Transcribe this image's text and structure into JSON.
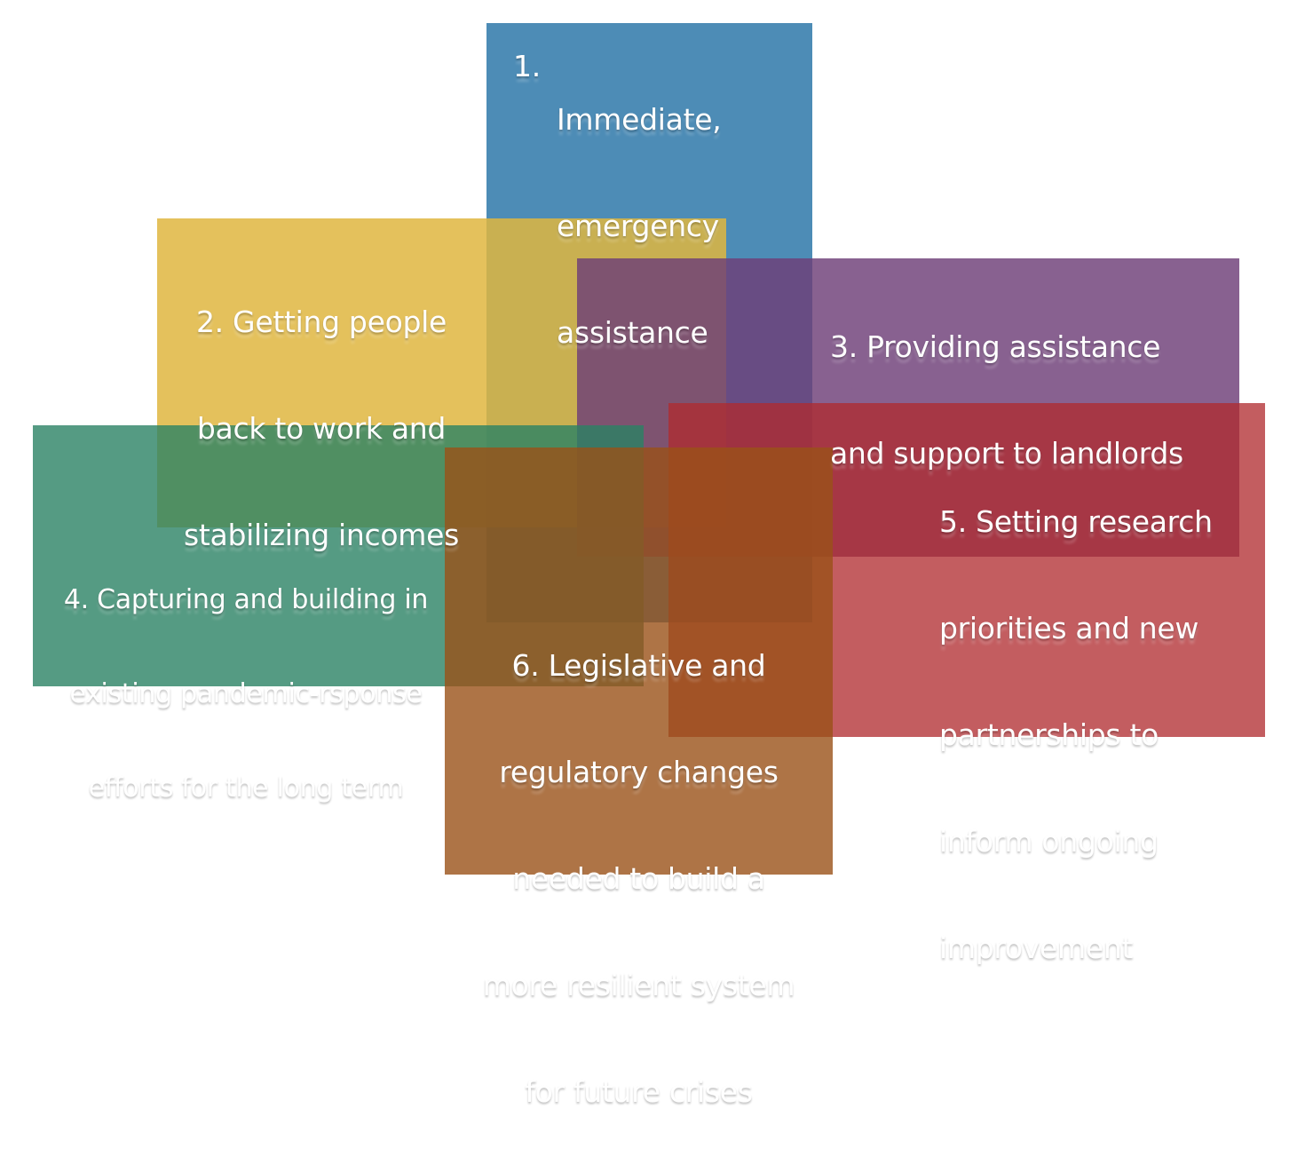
{
  "diagram": {
    "boxes": [
      {
        "id": "b1",
        "number": "1.",
        "lines": [
          "Immediate,",
          "emergency",
          "assistance"
        ],
        "color": "#2e78a9"
      },
      {
        "id": "b2",
        "lines": [
          "2. Getting people",
          "back to work and",
          "stabilizing incomes"
        ],
        "color": "#dfb640"
      },
      {
        "id": "b3",
        "lines": [
          "3. Providing assistance",
          "and support to landlords"
        ],
        "color": "#6e3e74"
      },
      {
        "id": "b4",
        "lines": [
          "4. Capturing and building in",
          "existing pandemic-rsponse",
          "efforts for the long term"
        ],
        "color": "#2e8465"
      },
      {
        "id": "b5",
        "lines": [
          "5. Setting research",
          "priorities and new",
          "partnerships to",
          "inform ongoing",
          "improvement"
        ],
        "color": "#b02e30"
      },
      {
        "id": "b6",
        "lines": [
          "6. Legislative and",
          "regulatory changes",
          "needed to build a",
          "more resilient system",
          "for future crises"
        ],
        "color": "#9a5118"
      }
    ]
  }
}
